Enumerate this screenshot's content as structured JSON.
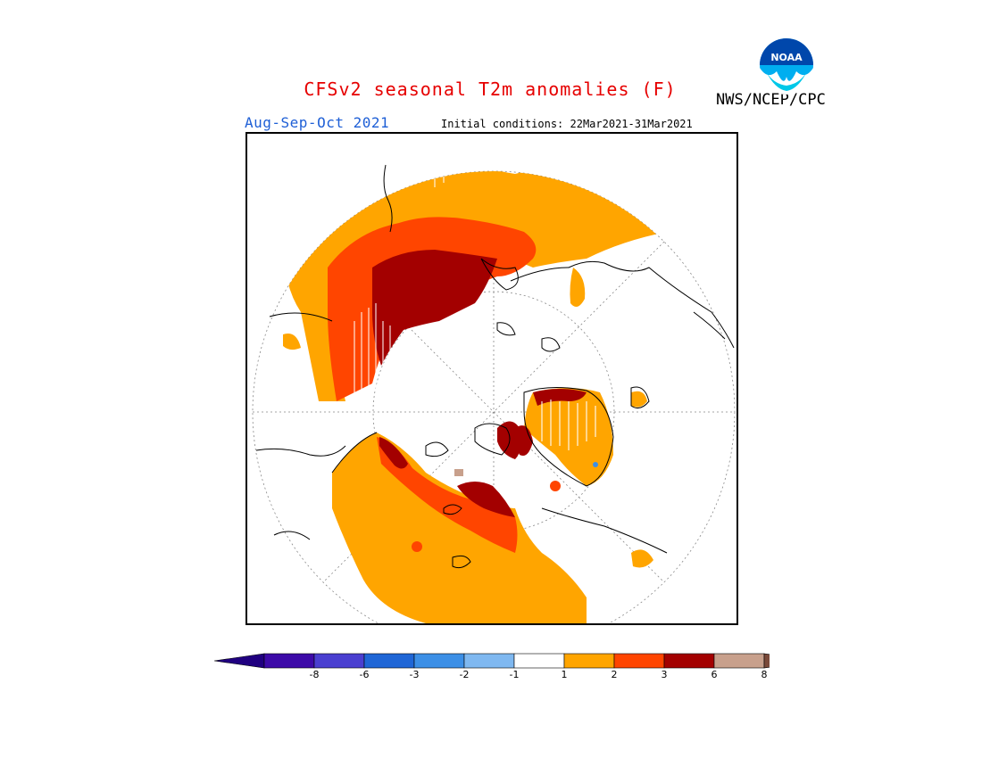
{
  "header": {
    "title": "CFSv2 seasonal T2m anomalies (F)",
    "season": "Aug-Sep-Oct 2021",
    "initial_conditions": "Initial conditions: 22Mar2021-31Mar2021",
    "agency": "NWS/NCEP/CPC",
    "logo_text": "NOAA"
  },
  "colors": {
    "title": "#e60000",
    "season": "#1e5fd6",
    "anomaly_1_2": "#ffa500",
    "anomaly_2_3": "#ff4500",
    "anomaly_3_6": "#a30000",
    "anomaly_6_8": "#c8a08c"
  },
  "colorbar": {
    "labels": [
      "-8",
      "-6",
      "-3",
      "-2",
      "-1",
      "1",
      "2",
      "3",
      "6",
      "8"
    ],
    "colors": [
      "#3d0aa8",
      "#4a3fd0",
      "#1f66d6",
      "#3c8fe6",
      "#7fb8f0",
      "#ffffff",
      "#ffa500",
      "#ff4500",
      "#a30000",
      "#c8a08c"
    ],
    "under_color": "#200080",
    "over_color": "#7a4a3a"
  },
  "map": {
    "projection": "north-polar-stereographic",
    "variable": "T2m anomaly"
  }
}
